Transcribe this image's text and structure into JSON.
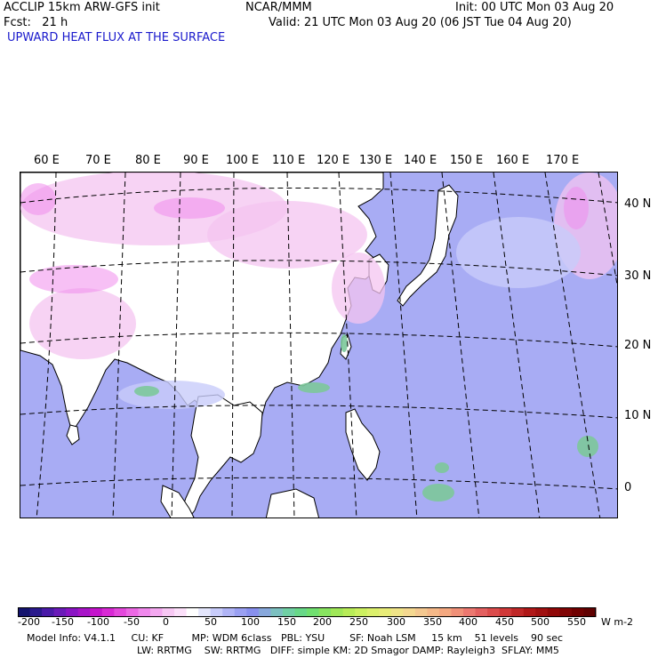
{
  "header": {
    "model": "ACCLIP 15km ARW-GFS init",
    "org": "NCAR/MMM",
    "init": "Init: 00 UTC Mon 03 Aug 20",
    "fcst": "Fcst:   21 h",
    "valid": "Valid: 21 UTC Mon 03 Aug 20 (06 JST Tue 04 Aug 20)",
    "field": "UPWARD HEAT FLUX AT THE SURFACE"
  },
  "map": {
    "lon_labels": [
      "60 E",
      "70 E",
      "80 E",
      "90 E",
      "100 E",
      "110 E",
      "120 E",
      "130 E",
      "140 E",
      "150 E",
      "160 E",
      "170 E"
    ],
    "lat_labels": [
      "40 N",
      "30 N",
      "20 N",
      "10 N",
      "0"
    ],
    "colors": {
      "ocean": "#a8acf4",
      "land": "#ffffff",
      "heat_pink": "#f4c4f0",
      "heat_magenta": "#f08cec",
      "green": "#7cc89a",
      "light_blue": "#c8ccfa"
    }
  },
  "colorbar": {
    "labels": [
      "-200",
      "-150",
      "-100",
      "-50",
      "0",
      "50",
      "100",
      "150",
      "200",
      "250",
      "300",
      "350",
      "400",
      "450",
      "500",
      "550"
    ],
    "unit": "W m-2",
    "colors": [
      "#14146e",
      "#2a1a8c",
      "#4a1aa8",
      "#6a1ab8",
      "#8a14c4",
      "#a814c8",
      "#c414cc",
      "#d828d4",
      "#e448dc",
      "#ec68e4",
      "#f088ec",
      "#f4a8f0",
      "#f8c8f4",
      "#fce0fa",
      "#ffffff",
      "#e4e6fc",
      "#c8ccfa",
      "#b0b4f6",
      "#9aa0f2",
      "#8890ee",
      "#88a8dc",
      "#7cc0c0",
      "#70d0a4",
      "#68d888",
      "#70e070",
      "#88e460",
      "#a0e858",
      "#b8ec58",
      "#ccf060",
      "#dcf06c",
      "#e8ec78",
      "#f0e488",
      "#f4d890",
      "#f4c890",
      "#f4b888",
      "#f4a880",
      "#f09078",
      "#ec7870",
      "#e46060",
      "#dc4c4c",
      "#d03838",
      "#c02828",
      "#b01818",
      "#a01010",
      "#900808",
      "#800404",
      "#700000",
      "#600000"
    ]
  },
  "footer": {
    "line1": "Model Info: V4.1.1     CU: KF         MP: WDM 6class   PBL: YSU        SF: Noah LSM     15 km    51 levels    90 sec",
    "line2": "LW: RRTMG    SW: RRTMG   DIFF: simple KM: 2D Smagor DAMP: Rayleigh3  SFLAY: MM5"
  }
}
